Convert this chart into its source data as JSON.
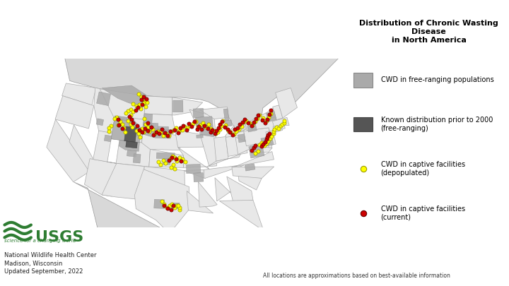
{
  "title": "Distribution of Chronic Wasting Disease\nin North America",
  "note_text": "All locations are approximations based on best-available information",
  "usgs_line1": "National Wildlife Health Center",
  "usgs_line2": "Madison, Wisconsin",
  "usgs_line3": "Updated September, 2022",
  "map_bg": "#f0f0f0",
  "land_color": "#e8e8e8",
  "state_edge": "#aaaaaa",
  "state_lw": 0.6,
  "county_edge": "#cccccc",
  "county_lw": 0.3,
  "canada_mexico_color": "#d8d8d8",
  "water_color": "#cce0f0",
  "cwd_light_color": "#aaaaaa",
  "cwd_dark_color": "#555555",
  "yellow_color": "#ffff00",
  "yellow_edge": "#999900",
  "red_color": "#cc0000",
  "red_edge": "#660000",
  "dot_size": 14,
  "yellow_points_lonlat": [
    [
      -104.8,
      48.5
    ],
    [
      -105.2,
      48.8
    ],
    [
      -106.0,
      49.2
    ],
    [
      -104.0,
      48.2
    ],
    [
      -103.5,
      48.0
    ],
    [
      -105.5,
      47.5
    ],
    [
      -104.5,
      47.8
    ],
    [
      -103.8,
      47.2
    ],
    [
      -105.0,
      46.8
    ],
    [
      -106.2,
      47.2
    ],
    [
      -107.0,
      47.5
    ],
    [
      -107.5,
      46.5
    ],
    [
      -106.8,
      46.2
    ],
    [
      -107.2,
      45.5
    ],
    [
      -108.0,
      46.2
    ],
    [
      -108.5,
      45.8
    ],
    [
      -107.8,
      44.5
    ],
    [
      -107.0,
      44.0
    ],
    [
      -106.5,
      43.5
    ],
    [
      -105.5,
      43.0
    ],
    [
      -105.0,
      42.5
    ],
    [
      -104.5,
      42.0
    ],
    [
      -103.8,
      42.8
    ],
    [
      -104.2,
      43.5
    ],
    [
      -103.5,
      44.2
    ],
    [
      -104.0,
      45.2
    ],
    [
      -103.0,
      43.8
    ],
    [
      -102.5,
      43.0
    ],
    [
      -101.8,
      43.5
    ],
    [
      -101.2,
      42.8
    ],
    [
      -100.5,
      43.2
    ],
    [
      -99.8,
      43.0
    ],
    [
      -99.2,
      42.5
    ],
    [
      -98.5,
      42.8
    ],
    [
      -97.8,
      42.5
    ],
    [
      -97.2,
      43.2
    ],
    [
      -96.8,
      43.5
    ],
    [
      -96.2,
      43.8
    ],
    [
      -95.5,
      43.2
    ],
    [
      -94.8,
      43.5
    ],
    [
      -94.2,
      44.0
    ],
    [
      -93.5,
      43.8
    ],
    [
      -92.8,
      44.2
    ],
    [
      -92.2,
      44.5
    ],
    [
      -91.5,
      44.8
    ],
    [
      -91.0,
      43.8
    ],
    [
      -90.5,
      44.2
    ],
    [
      -89.8,
      44.5
    ],
    [
      -89.2,
      43.8
    ],
    [
      -88.5,
      44.2
    ],
    [
      -88.0,
      43.5
    ],
    [
      -87.5,
      43.0
    ],
    [
      -87.0,
      42.5
    ],
    [
      -86.5,
      42.8
    ],
    [
      -86.0,
      43.2
    ],
    [
      -85.5,
      43.8
    ],
    [
      -85.0,
      44.5
    ],
    [
      -84.5,
      43.8
    ],
    [
      -84.0,
      42.8
    ],
    [
      -83.5,
      42.5
    ],
    [
      -82.8,
      42.0
    ],
    [
      -82.2,
      42.5
    ],
    [
      -81.5,
      42.8
    ],
    [
      -80.8,
      43.2
    ],
    [
      -80.2,
      43.8
    ],
    [
      -79.5,
      44.0
    ],
    [
      -78.8,
      43.5
    ],
    [
      -78.2,
      43.0
    ],
    [
      -77.5,
      43.5
    ],
    [
      -76.8,
      44.0
    ],
    [
      -76.2,
      44.5
    ],
    [
      -75.5,
      43.8
    ],
    [
      -74.8,
      43.2
    ],
    [
      -74.2,
      43.8
    ],
    [
      -73.5,
      44.2
    ],
    [
      -110.5,
      44.8
    ],
    [
      -111.0,
      44.5
    ],
    [
      -109.5,
      44.2
    ],
    [
      -109.0,
      43.8
    ],
    [
      -108.5,
      43.2
    ],
    [
      -108.0,
      42.5
    ],
    [
      -110.0,
      43.5
    ],
    [
      -111.5,
      43.2
    ],
    [
      -112.0,
      42.8
    ],
    [
      -111.8,
      42.2
    ],
    [
      -97.5,
      38.5
    ],
    [
      -97.0,
      39.0
    ],
    [
      -96.5,
      38.8
    ],
    [
      -96.0,
      38.2
    ],
    [
      -95.5,
      38.8
    ],
    [
      -94.8,
      38.5
    ],
    [
      -94.2,
      38.0
    ],
    [
      -96.8,
      37.5
    ],
    [
      -97.2,
      37.0
    ],
    [
      -96.5,
      36.8
    ],
    [
      -98.5,
      37.8
    ],
    [
      -99.0,
      38.2
    ],
    [
      -99.5,
      37.5
    ],
    [
      -100.0,
      38.0
    ],
    [
      -98.0,
      30.2
    ],
    [
      -97.5,
      30.5
    ],
    [
      -97.0,
      30.8
    ],
    [
      -96.5,
      30.2
    ],
    [
      -96.0,
      30.5
    ],
    [
      -95.5,
      29.8
    ],
    [
      -98.5,
      30.8
    ],
    [
      -99.0,
      31.2
    ],
    [
      -77.5,
      39.5
    ],
    [
      -77.0,
      39.8
    ],
    [
      -76.5,
      39.2
    ],
    [
      -76.0,
      39.5
    ],
    [
      -75.5,
      39.8
    ],
    [
      -75.0,
      40.2
    ],
    [
      -74.5,
      40.5
    ],
    [
      -74.0,
      40.8
    ],
    [
      -73.8,
      41.2
    ],
    [
      -73.5,
      41.5
    ],
    [
      -73.0,
      41.8
    ],
    [
      -72.5,
      41.5
    ],
    [
      -72.0,
      41.8
    ],
    [
      -71.5,
      42.0
    ],
    [
      -71.0,
      42.2
    ],
    [
      -70.8,
      42.5
    ],
    [
      -78.2,
      38.5
    ],
    [
      -78.8,
      38.2
    ],
    [
      -95.5,
      30.2
    ],
    [
      -95.8,
      30.5
    ]
  ],
  "red_points_lonlat": [
    [
      -104.5,
      48.8
    ],
    [
      -105.0,
      48.3
    ],
    [
      -103.8,
      48.5
    ],
    [
      -104.8,
      47.5
    ],
    [
      -105.8,
      47.0
    ],
    [
      -106.2,
      46.5
    ],
    [
      -107.5,
      45.2
    ],
    [
      -107.0,
      44.8
    ],
    [
      -106.5,
      44.2
    ],
    [
      -105.5,
      43.8
    ],
    [
      -104.8,
      43.2
    ],
    [
      -104.2,
      42.8
    ],
    [
      -103.5,
      43.5
    ],
    [
      -103.0,
      44.5
    ],
    [
      -102.8,
      43.2
    ],
    [
      -102.0,
      43.8
    ],
    [
      -101.5,
      42.5
    ],
    [
      -100.8,
      43.0
    ],
    [
      -100.2,
      42.8
    ],
    [
      -99.5,
      43.5
    ],
    [
      -98.8,
      43.0
    ],
    [
      -98.2,
      42.5
    ],
    [
      -97.5,
      43.2
    ],
    [
      -96.5,
      43.5
    ],
    [
      -95.8,
      43.0
    ],
    [
      -95.2,
      43.8
    ],
    [
      -94.5,
      44.2
    ],
    [
      -93.8,
      43.5
    ],
    [
      -93.2,
      44.5
    ],
    [
      -92.5,
      44.0
    ],
    [
      -91.8,
      44.8
    ],
    [
      -91.2,
      43.5
    ],
    [
      -90.8,
      44.0
    ],
    [
      -90.2,
      43.5
    ],
    [
      -89.5,
      44.0
    ],
    [
      -88.8,
      43.5
    ],
    [
      -88.2,
      42.8
    ],
    [
      -87.8,
      43.2
    ],
    [
      -87.2,
      42.5
    ],
    [
      -86.8,
      43.0
    ],
    [
      -86.2,
      43.5
    ],
    [
      -85.8,
      44.0
    ],
    [
      -85.2,
      44.5
    ],
    [
      -84.8,
      43.5
    ],
    [
      -84.2,
      43.0
    ],
    [
      -83.8,
      42.5
    ],
    [
      -83.2,
      42.0
    ],
    [
      -82.5,
      42.8
    ],
    [
      -81.8,
      43.0
    ],
    [
      -81.2,
      43.5
    ],
    [
      -80.5,
      43.8
    ],
    [
      -79.8,
      44.2
    ],
    [
      -79.2,
      43.5
    ],
    [
      -78.5,
      43.0
    ],
    [
      -77.8,
      43.5
    ],
    [
      -77.2,
      44.0
    ],
    [
      -76.5,
      44.5
    ],
    [
      -75.8,
      43.5
    ],
    [
      -75.2,
      43.0
    ],
    [
      -74.5,
      43.5
    ],
    [
      -73.8,
      44.2
    ],
    [
      -73.2,
      44.8
    ],
    [
      -77.2,
      39.2
    ],
    [
      -76.8,
      39.5
    ],
    [
      -76.2,
      39.8
    ],
    [
      -75.8,
      40.2
    ],
    [
      -75.5,
      40.5
    ],
    [
      -75.2,
      40.8
    ],
    [
      -74.8,
      41.0
    ],
    [
      -97.8,
      38.2
    ],
    [
      -97.2,
      38.8
    ],
    [
      -96.2,
      38.5
    ],
    [
      -95.2,
      38.2
    ],
    [
      -98.5,
      30.5
    ],
    [
      -97.8,
      30.0
    ],
    [
      -97.2,
      29.8
    ],
    [
      -96.8,
      30.5
    ],
    [
      -110.2,
      44.5
    ],
    [
      -109.8,
      43.5
    ],
    [
      -108.8,
      43.0
    ],
    [
      -79.5,
      38.8
    ],
    [
      -79.0,
      39.2
    ],
    [
      -78.5,
      39.5
    ]
  ]
}
